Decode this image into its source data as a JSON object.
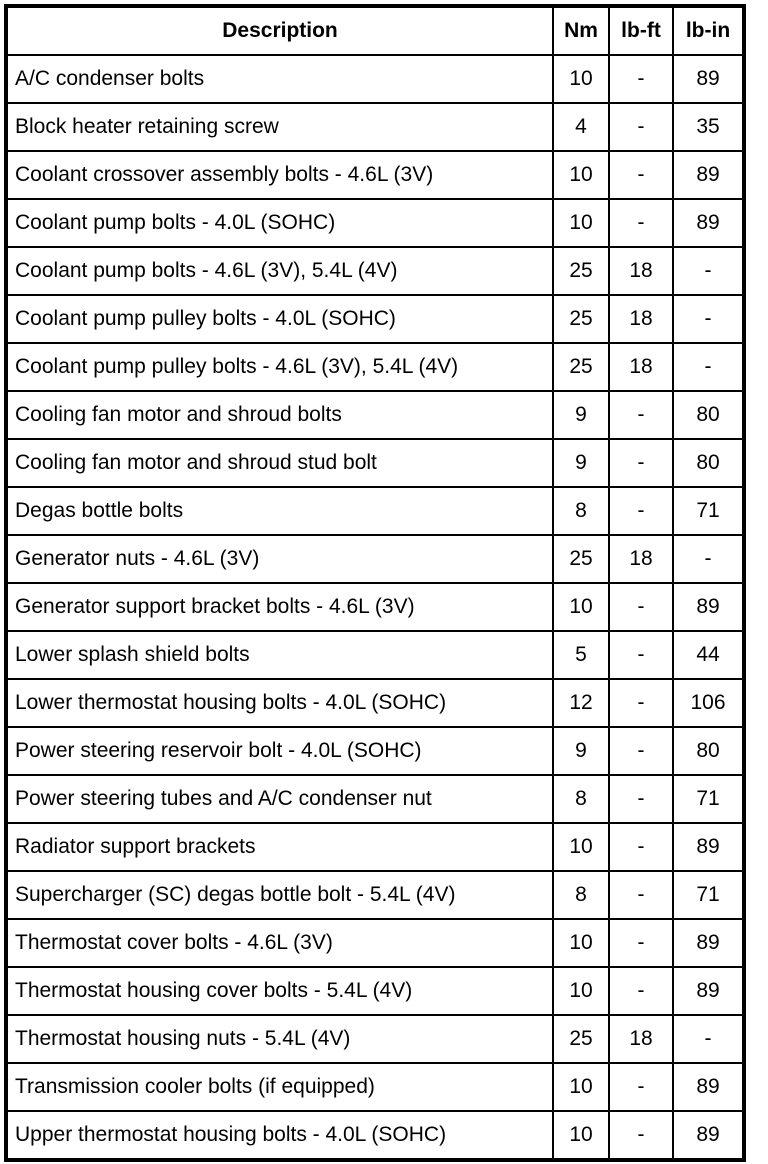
{
  "headers": [
    "Description",
    "Nm",
    "lb-ft",
    "lb-in"
  ],
  "rows": [
    [
      "A/C condenser bolts",
      "10",
      "-",
      "89"
    ],
    [
      "Block heater retaining screw",
      "4",
      "-",
      "35"
    ],
    [
      "Coolant crossover assembly bolts - 4.6L (3V)",
      "10",
      "-",
      "89"
    ],
    [
      "Coolant pump bolts - 4.0L (SOHC)",
      "10",
      "-",
      "89"
    ],
    [
      "Coolant pump bolts - 4.6L (3V), 5.4L (4V)",
      "25",
      "18",
      "-"
    ],
    [
      "Coolant pump pulley bolts - 4.0L (SOHC)",
      "25",
      "18",
      "-"
    ],
    [
      "Coolant pump pulley bolts - 4.6L (3V), 5.4L (4V)",
      "25",
      "18",
      "-"
    ],
    [
      "Cooling fan motor and shroud bolts",
      "9",
      "-",
      "80"
    ],
    [
      "Cooling fan motor and shroud stud bolt",
      "9",
      "-",
      "80"
    ],
    [
      "Degas bottle bolts",
      "8",
      "-",
      "71"
    ],
    [
      "Generator nuts - 4.6L (3V)",
      "25",
      "18",
      "-"
    ],
    [
      "Generator support bracket bolts - 4.6L (3V)",
      "10",
      "-",
      "89"
    ],
    [
      "Lower splash shield bolts",
      "5",
      "-",
      "44"
    ],
    [
      "Lower thermostat housing bolts - 4.0L (SOHC)",
      "12",
      "-",
      "106"
    ],
    [
      "Power steering reservoir bolt - 4.0L (SOHC)",
      "9",
      "-",
      "80"
    ],
    [
      "Power steering tubes and A/C condenser nut",
      "8",
      "-",
      "71"
    ],
    [
      "Radiator support brackets",
      "10",
      "-",
      "89"
    ],
    [
      "Supercharger (SC) degas bottle bolt - 5.4L (4V)",
      "8",
      "-",
      "71"
    ],
    [
      "Thermostat cover bolts - 4.6L (3V)",
      "10",
      "-",
      "89"
    ],
    [
      "Thermostat housing cover bolts - 5.4L (4V)",
      "10",
      "-",
      "89"
    ],
    [
      "Thermostat housing nuts - 5.4L (4V)",
      "25",
      "18",
      "-"
    ],
    [
      "Transmission cooler bolts (if equipped)",
      "10",
      "-",
      "89"
    ],
    [
      "Upper thermostat housing bolts - 4.0L (SOHC)",
      "10",
      "-",
      "89"
    ]
  ]
}
